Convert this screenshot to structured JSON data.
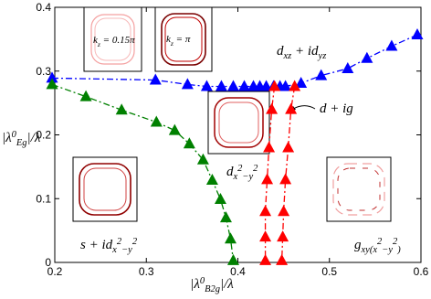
{
  "chart_data": {
    "type": "scatter",
    "x_label": [
      {
        "t": "|λ"
      },
      {
        "t": "0",
        "sup": true
      },
      {
        "t": "B2g",
        "sub": true
      },
      {
        "t": "|/λ"
      }
    ],
    "y_label": [
      {
        "t": "|λ"
      },
      {
        "t": "0",
        "sup": true
      },
      {
        "t": "Eg",
        "sub": true
      },
      {
        "t": "|/λ"
      }
    ],
    "xlim": [
      0.2,
      0.6
    ],
    "ylim": [
      0,
      0.4
    ],
    "xticks": [
      0.2,
      0.3,
      0.4,
      0.5,
      0.6
    ],
    "yticks": [
      0,
      0.1,
      0.2,
      0.3,
      0.4
    ],
    "series": [
      {
        "color": "#0000ff",
        "x": [
          0.197,
          0.31,
          0.345,
          0.366,
          0.382,
          0.395,
          0.407,
          0.417,
          0.424,
          0.431,
          0.439,
          0.446,
          0.452,
          0.469,
          0.491,
          0.52,
          0.541,
          0.568,
          0.596
        ],
        "values": [
          0.289,
          0.286,
          0.279,
          0.276,
          0.276,
          0.276,
          0.276,
          0.276,
          0.276,
          0.276,
          0.276,
          0.276,
          0.276,
          0.281,
          0.293,
          0.304,
          0.32,
          0.339,
          0.357
        ]
      },
      {
        "color": "#008000",
        "x": [
          0.197,
          0.234,
          0.273,
          0.311,
          0.331,
          0.347,
          0.362,
          0.372,
          0.381,
          0.387,
          0.392,
          0.395
        ],
        "values": [
          0.279,
          0.26,
          0.239,
          0.22,
          0.207,
          0.186,
          0.161,
          0.129,
          0.099,
          0.07,
          0.037,
          0.003
        ]
      },
      {
        "color": "#ff0000",
        "x": [
          0.44,
          0.437,
          0.434,
          0.432,
          0.43,
          0.43,
          0.43
        ],
        "values": [
          0.276,
          0.24,
          0.18,
          0.13,
          0.08,
          0.04,
          0.003
        ]
      },
      {
        "color": "#ff0000",
        "x": [
          0.462,
          0.458,
          0.455,
          0.452,
          0.45,
          0.449,
          0.448
        ],
        "values": [
          0.276,
          0.24,
          0.18,
          0.13,
          0.08,
          0.04,
          0.003
        ]
      }
    ],
    "annotations": [
      {
        "parts": [
          {
            "t": "d"
          },
          {
            "t": "xz",
            "sub": true
          },
          {
            "t": " + id"
          },
          {
            "t": "yz",
            "sub": true
          }
        ]
      },
      {
        "parts": [
          {
            "t": "d + ig"
          }
        ]
      },
      {
        "parts": [
          {
            "t": "d"
          },
          {
            "t": "x",
            "sub": true
          },
          {
            "t": "2",
            "sup": true
          },
          {
            "t": "−y",
            "sub": true
          },
          {
            "t": "2",
            "sup": true
          }
        ]
      },
      {
        "parts": [
          {
            "t": "s + id"
          },
          {
            "t": "x",
            "sub": true
          },
          {
            "t": "2",
            "sup": true
          },
          {
            "t": "−y",
            "sub": true
          },
          {
            "t": "2",
            "sup": true
          }
        ]
      },
      {
        "parts": [
          {
            "t": "g"
          },
          {
            "t": "xy(x",
            "sub": true
          },
          {
            "t": "2",
            "sup": true
          },
          {
            "t": "−y",
            "sub": true
          },
          {
            "t": "2",
            "sup": true
          },
          {
            "t": ")",
            "sub": true
          }
        ]
      },
      {
        "parts": [
          {
            "t": "k"
          },
          {
            "t": "z",
            "sub": true
          },
          {
            "t": " = 0.15π"
          }
        ]
      },
      {
        "parts": [
          {
            "t": "k"
          },
          {
            "t": "z",
            "sub": true
          },
          {
            "t": " = π"
          }
        ]
      }
    ]
  }
}
